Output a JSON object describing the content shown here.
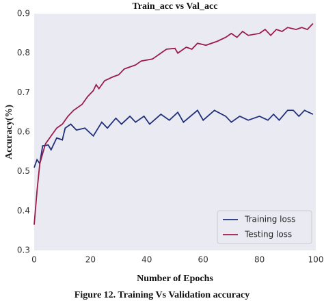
{
  "chart_data": {
    "type": "line",
    "title": "Train_acc vs Val_acc",
    "xlabel": "Number of Epochs",
    "ylabel": "Accuracy(%)",
    "caption": "Figure 12. Training Vs Validation accuracy",
    "xlim": [
      0,
      100
    ],
    "xticks": [
      0,
      20,
      40,
      60,
      80,
      100
    ],
    "ylim": [
      0.3,
      0.9
    ],
    "yticks": [
      0.3,
      0.4,
      0.5,
      0.6,
      0.7,
      0.8,
      0.9
    ],
    "grid": false,
    "legend": "lower right",
    "series": [
      {
        "name": "Training loss",
        "color": "#1f2f7a",
        "x": [
          0,
          1,
          2,
          3,
          5,
          6,
          8,
          10,
          11,
          13,
          15,
          18,
          21,
          24,
          26,
          29,
          31,
          34,
          36,
          39,
          41,
          45,
          48,
          51,
          53,
          58,
          60,
          64,
          68,
          70,
          73,
          76,
          80,
          83,
          85,
          87,
          90,
          92,
          94,
          96,
          99
        ],
        "values": [
          0.51,
          0.53,
          0.52,
          0.565,
          0.567,
          0.555,
          0.585,
          0.58,
          0.61,
          0.62,
          0.605,
          0.61,
          0.59,
          0.625,
          0.61,
          0.635,
          0.62,
          0.64,
          0.625,
          0.64,
          0.62,
          0.645,
          0.63,
          0.65,
          0.625,
          0.655,
          0.63,
          0.655,
          0.64,
          0.625,
          0.64,
          0.63,
          0.64,
          0.63,
          0.645,
          0.63,
          0.655,
          0.655,
          0.64,
          0.655,
          0.645
        ]
      },
      {
        "name": "Testing loss",
        "color": "#9b1b4b",
        "x": [
          0,
          1,
          2,
          4,
          6,
          8,
          10,
          12,
          14,
          17,
          19,
          21,
          22,
          23,
          25,
          28,
          30,
          32,
          34,
          36,
          38,
          42,
          45,
          47,
          50,
          51,
          54,
          56,
          58,
          61,
          65,
          68,
          70,
          72,
          74,
          76,
          80,
          82,
          84,
          86,
          88,
          90,
          93,
          95,
          97,
          99
        ],
        "values": [
          0.365,
          0.45,
          0.52,
          0.57,
          0.59,
          0.61,
          0.62,
          0.64,
          0.655,
          0.67,
          0.69,
          0.705,
          0.72,
          0.71,
          0.73,
          0.74,
          0.745,
          0.76,
          0.765,
          0.77,
          0.78,
          0.785,
          0.8,
          0.81,
          0.812,
          0.8,
          0.815,
          0.81,
          0.825,
          0.82,
          0.83,
          0.84,
          0.85,
          0.84,
          0.855,
          0.845,
          0.85,
          0.86,
          0.845,
          0.86,
          0.855,
          0.865,
          0.86,
          0.865,
          0.86,
          0.875
        ]
      }
    ]
  }
}
